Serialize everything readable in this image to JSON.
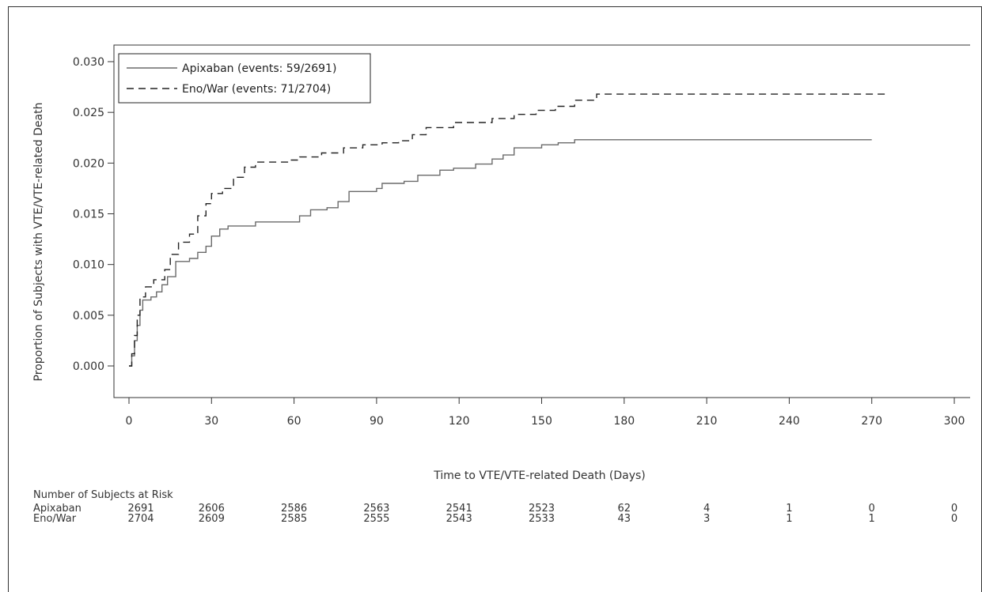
{
  "chart_data": {
    "type": "line",
    "xlabel": "Time to VTE/VTE-related Death (Days)",
    "ylabel": "Proportion of Subjects with VTE/VTE-related Death",
    "xlim": [
      0,
      300
    ],
    "ylim": [
      -0.003,
      0.0315
    ],
    "xticks": [
      0,
      30,
      60,
      90,
      120,
      150,
      180,
      210,
      240,
      270,
      300
    ],
    "yticks": [
      "0.000",
      "0.005",
      "0.010",
      "0.015",
      "0.020",
      "0.025",
      "0.030"
    ],
    "legend_position": "top-left",
    "series": [
      {
        "name": "Apixaban (events: 59/2691)",
        "style": "solid",
        "color": "#6a6a6a",
        "points": [
          [
            0,
            0.0
          ],
          [
            1,
            0.001
          ],
          [
            2,
            0.0025
          ],
          [
            3,
            0.004
          ],
          [
            4,
            0.0055
          ],
          [
            5,
            0.0065
          ],
          [
            8,
            0.0068
          ],
          [
            10,
            0.0073
          ],
          [
            12,
            0.008
          ],
          [
            14,
            0.0088
          ],
          [
            17,
            0.0103
          ],
          [
            22,
            0.0106
          ],
          [
            25,
            0.0112
          ],
          [
            28,
            0.0118
          ],
          [
            30,
            0.0128
          ],
          [
            33,
            0.0135
          ],
          [
            36,
            0.0138
          ],
          [
            46,
            0.0142
          ],
          [
            60,
            0.0142
          ],
          [
            62,
            0.0148
          ],
          [
            66,
            0.0154
          ],
          [
            72,
            0.0156
          ],
          [
            76,
            0.0162
          ],
          [
            80,
            0.0172
          ],
          [
            90,
            0.0175
          ],
          [
            92,
            0.018
          ],
          [
            100,
            0.0182
          ],
          [
            105,
            0.0188
          ],
          [
            113,
            0.0193
          ],
          [
            118,
            0.0195
          ],
          [
            126,
            0.0199
          ],
          [
            132,
            0.0204
          ],
          [
            136,
            0.0208
          ],
          [
            140,
            0.0215
          ],
          [
            150,
            0.0218
          ],
          [
            156,
            0.022
          ],
          [
            162,
            0.0223
          ],
          [
            270,
            0.0223
          ]
        ]
      },
      {
        "name": "Eno/War (events: 71/2704)",
        "style": "dashed",
        "color": "#222222",
        "points": [
          [
            0,
            0.0
          ],
          [
            1,
            0.0012
          ],
          [
            2,
            0.003
          ],
          [
            3,
            0.005
          ],
          [
            4,
            0.0068
          ],
          [
            6,
            0.0078
          ],
          [
            9,
            0.0085
          ],
          [
            13,
            0.0095
          ],
          [
            15,
            0.011
          ],
          [
            18,
            0.0122
          ],
          [
            22,
            0.013
          ],
          [
            25,
            0.0148
          ],
          [
            28,
            0.016
          ],
          [
            30,
            0.017
          ],
          [
            34,
            0.0175
          ],
          [
            38,
            0.0186
          ],
          [
            42,
            0.0196
          ],
          [
            46,
            0.0201
          ],
          [
            58,
            0.0203
          ],
          [
            62,
            0.0206
          ],
          [
            70,
            0.021
          ],
          [
            78,
            0.0215
          ],
          [
            85,
            0.0218
          ],
          [
            92,
            0.022
          ],
          [
            98,
            0.0222
          ],
          [
            103,
            0.0228
          ],
          [
            108,
            0.0235
          ],
          [
            118,
            0.024
          ],
          [
            132,
            0.0244
          ],
          [
            140,
            0.0248
          ],
          [
            148,
            0.0252
          ],
          [
            155,
            0.0256
          ],
          [
            162,
            0.0262
          ],
          [
            170,
            0.0268
          ],
          [
            275,
            0.0268
          ]
        ]
      }
    ]
  },
  "risk_table": {
    "title": "Number of Subjects at Risk",
    "rows": [
      {
        "name": "Apixaban",
        "values": [
          "2691",
          "2606",
          "2586",
          "2563",
          "2541",
          "2523",
          "62",
          "4",
          "1",
          "0",
          "0"
        ]
      },
      {
        "name": "Eno/War",
        "values": [
          "2704",
          "2609",
          "2585",
          "2555",
          "2543",
          "2533",
          "43",
          "3",
          "1",
          "1",
          "0"
        ]
      }
    ]
  }
}
